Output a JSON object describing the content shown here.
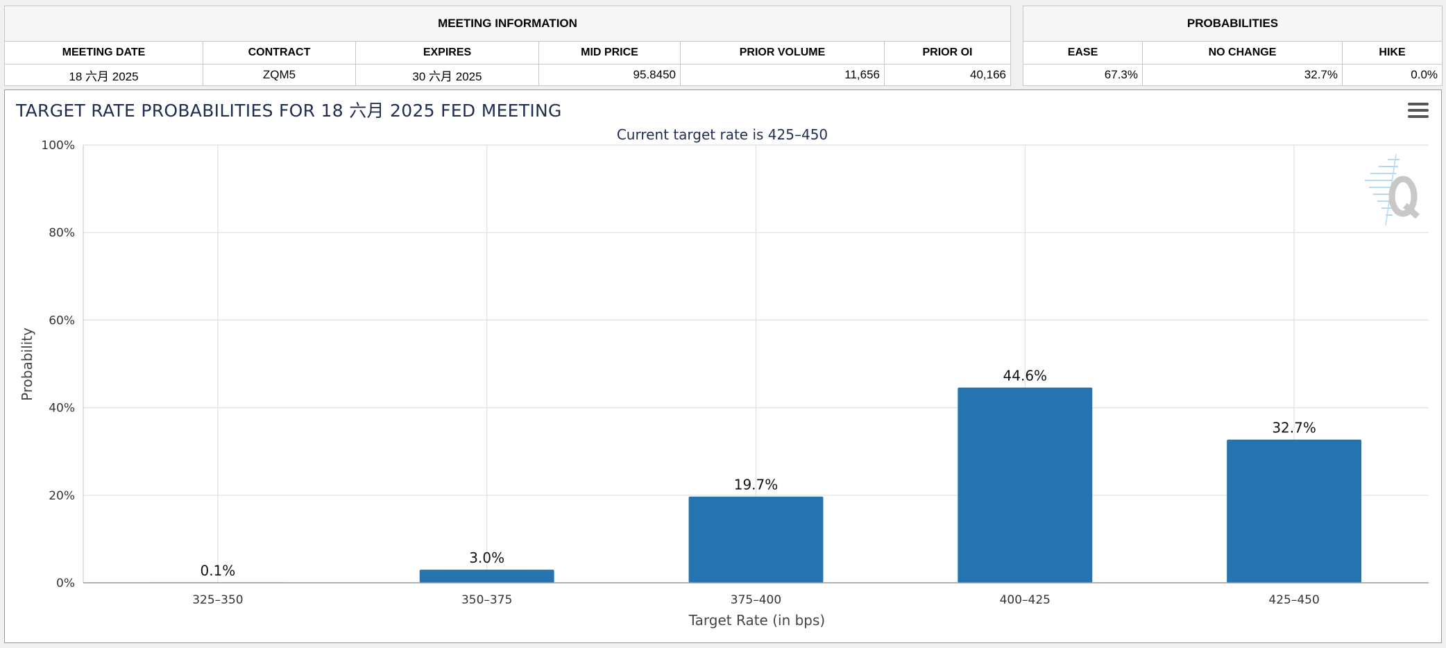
{
  "meeting_info": {
    "title": "MEETING INFORMATION",
    "columns": [
      "MEETING DATE",
      "CONTRACT",
      "EXPIRES",
      "MID PRICE",
      "PRIOR VOLUME",
      "PRIOR OI"
    ],
    "row": [
      "18 六月 2025",
      "ZQM5",
      "30 六月 2025",
      "95.8450",
      "11,656",
      "40,166"
    ]
  },
  "probabilities": {
    "title": "PROBABILITIES",
    "columns": [
      "EASE",
      "NO CHANGE",
      "HIKE"
    ],
    "row": [
      "67.3%",
      "32.7%",
      "0.0%"
    ]
  },
  "menu_icon": "hamburger-menu-icon",
  "watermark_icon": "q-logo-icon",
  "colors": {
    "bar": "#2574b0",
    "title": "#1f2d50",
    "grid": "#e0e0e0",
    "watermark": "#c8c8c8"
  },
  "chart_data": {
    "type": "bar",
    "title": "TARGET RATE PROBABILITIES FOR 18 六月 2025 FED MEETING",
    "subtitle": "Current target rate is 425–450",
    "xlabel": "Target Rate (in bps)",
    "ylabel": "Probability",
    "categories": [
      "325–350",
      "350–375",
      "375–400",
      "400–425",
      "425–450"
    ],
    "values": [
      0.1,
      3.0,
      19.7,
      44.6,
      32.7
    ],
    "data_labels": [
      "0.1%",
      "3.0%",
      "19.7%",
      "44.6%",
      "32.7%"
    ],
    "ylim": [
      0,
      100
    ],
    "yticks": [
      "0%",
      "20%",
      "40%",
      "60%",
      "80%",
      "100%"
    ],
    "grid": true,
    "legend": "none"
  }
}
